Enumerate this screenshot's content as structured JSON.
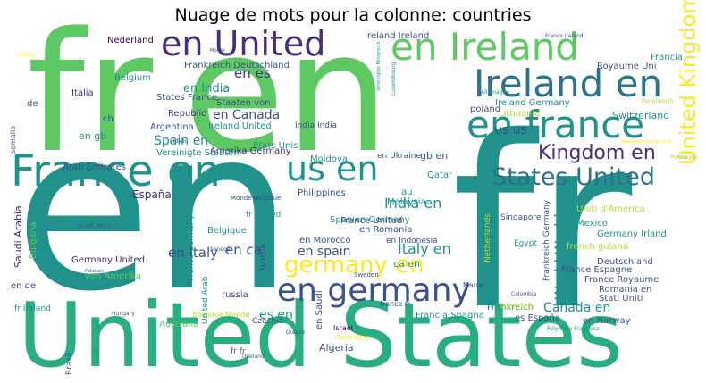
{
  "title": "Nuage de mots pour la colonne: countries",
  "palette": {
    "dark_purple": "#440154",
    "indigo": "#472d7b",
    "blue": "#3b528b",
    "steel": "#2c728e",
    "teal": "#21918c",
    "sea": "#28ae80",
    "green": "#5ec962",
    "lime": "#addc30",
    "yellow": "#fde725"
  },
  "words": [
    "fr",
    "en",
    "United States",
    "fr en",
    "en fr",
    "Ireland en",
    "en france",
    "France en",
    "us en",
    "States United",
    "en United",
    "en Ireland",
    "en germany",
    "germany en",
    "United Kingdom",
    "Kingdom en",
    "en es",
    "en India",
    "en Canada",
    "Italy en",
    "en ca",
    "en Italy",
    "en spain",
    "Spain en",
    "India en",
    "World World",
    "Canada en",
    "en gb",
    "us us",
    "Switzerland",
    "Ireland Germany",
    "Ireland Ireland",
    "Frankreich Deutschland",
    "Nederland",
    "Belgium",
    "Italia",
    "Republic",
    "Argentina",
    "Ireland United",
    "États Unis",
    "Amerika Germany",
    "Vereinigte Staaten",
    "Arab Emirates",
    "España",
    "Saudi Arabia",
    "Bulgaria",
    "Belgique",
    "Germany United",
    "von Amerika",
    "Australia",
    "Belgique Monde",
    "France Germany",
    "United Arab",
    "russia",
    "Czechia",
    "Austria",
    "en Saudi",
    "Israel",
    "Algeria",
    "Hong Kong",
    "Brasil",
    "en Morocco",
    "en Romania",
    "Spanien Germany",
    "France United",
    "fr United",
    "Philippines",
    "Monde Belgique",
    "Malaysia",
    "Qatar",
    "gb en",
    "en Ukraine",
    "en Indonesia",
    "Mexico",
    "Singapore",
    "Egypt",
    "Germany Irland",
    "french guiana",
    "Deutschland",
    "France Espagne",
    "France Royaume",
    "Romania en",
    "Stati Uniti",
    "Frankreich Germany",
    "Frankreich",
    "Francia Spagna",
    "es España",
    "en Norway",
    "Maroc",
    "poland",
    "Lithuania",
    "Royaume Uni",
    "Francia",
    "India India",
    "Staaten von",
    "States France",
    "en de",
    "fr Ireland",
    "somalia",
    "de",
    "ch",
    "Moldova",
    "Uniti d'America",
    "ca en",
    "Netherlands",
    "Cameroon",
    "Colombia",
    "Sweden",
    "Hungary",
    "Senegal",
    "Thailand",
    "Polynésie Française",
    "Greece",
    "Turkey",
    "Bangladesh",
    "Pologne",
    "South Africa",
    "France Ireland",
    "Allemagne",
    "Luxembourg",
    "Vereinigtes Königreich",
    "Monde",
    "Pakistan",
    "Republica Dominicana",
    "Polska",
    "es en",
    "au",
    "fr fr",
    "lu",
    "france fr",
    "Indien"
  ]
}
